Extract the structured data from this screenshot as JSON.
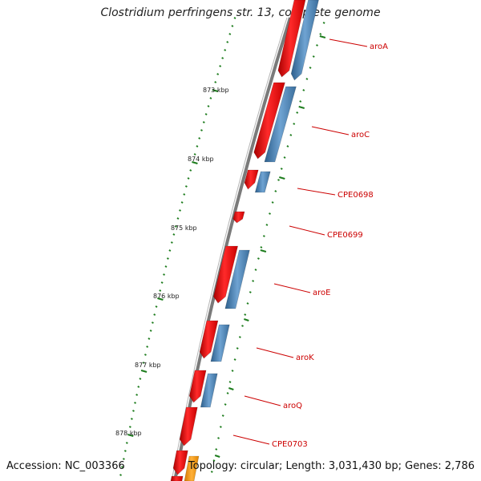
{
  "title": "Clostridium perfringens str. 13, complete genome",
  "accession": "Accession: NC_003366",
  "topology": "Topology: circular; Length: 3,031,430 bp; Genes: 2,786",
  "scale_labels": [
    "873 kbp",
    "874 kbp",
    "875 kbp",
    "876 kbp",
    "877 kbp",
    "878 kbp"
  ],
  "gene_labels": [
    "aroA",
    "aroC",
    "CPE0698",
    "CPE0699",
    "aroE",
    "aroK",
    "aroQ",
    "CPE0703"
  ],
  "colors": {
    "cds_forward": "#ff0000",
    "cds_reverse": "#4682b4",
    "other_feature": "#ff9900",
    "backbone": "#808080",
    "ticks": "#1e7d1e",
    "label": "#cc0000"
  }
}
